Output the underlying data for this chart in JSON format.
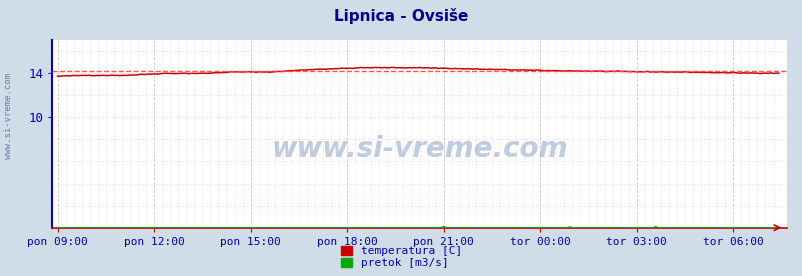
{
  "title": "Lipnica - Ovsiše",
  "bg_color": "#d0dce8",
  "plot_bg_color": "#ffffff",
  "grid_color_v": "#e8c8d0",
  "grid_color_h": "#f0d8e0",
  "temp_color": "#cc0000",
  "flow_color": "#00aa00",
  "avg_color": "#ff4444",
  "border_color_left": "#0000cc",
  "border_color_bottom": "#cc0000",
  "axis_label_color": "#0000aa",
  "title_color": "#000088",
  "watermark_color": "#6080a0",
  "ylabel_left": "www.si-vreme.com",
  "xlabel_ticks": [
    "pon 09:00",
    "pon 12:00",
    "pon 15:00",
    "pon 18:00",
    "pon 21:00",
    "tor 00:00",
    "tor 03:00",
    "tor 06:00"
  ],
  "tick_positions": [
    0,
    36,
    72,
    108,
    144,
    180,
    216,
    252
  ],
  "total_points": 270,
  "ylim": [
    0,
    17.0
  ],
  "ytick_vals": [
    10,
    14
  ],
  "temp_avg": 14.25,
  "legend_items": [
    "temperatura [C]",
    "pretok [m3/s]"
  ],
  "legend_colors": [
    "#cc0000",
    "#00aa00"
  ],
  "figsize": [
    8.03,
    2.76
  ],
  "dpi": 100
}
